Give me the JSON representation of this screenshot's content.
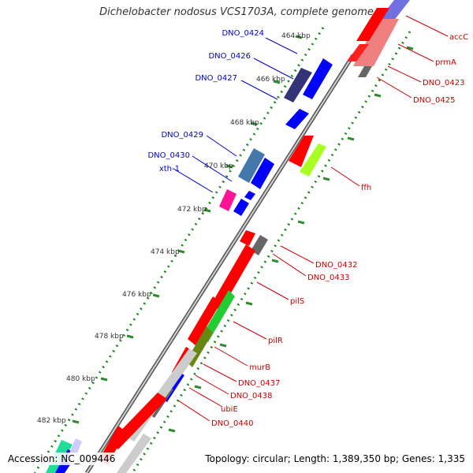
{
  "title": "Dichelobacter nodosus VCS1703A, complete genome",
  "footer": {
    "accession": "Accession: NC_009446",
    "topology": "Topology: circular; Length: 1,389,350 bp; Genes: 1,335"
  },
  "ruler_ticks": [
    {
      "label": "464 kbp"
    },
    {
      "label": "466 kbp"
    },
    {
      "label": "468 kbp"
    },
    {
      "label": "470 kbp"
    },
    {
      "label": "472 kbp"
    },
    {
      "label": "474 kbp"
    },
    {
      "label": "476 kbp"
    },
    {
      "label": "478 kbp"
    },
    {
      "label": "480 kbp"
    },
    {
      "label": "482 kbp"
    }
  ],
  "gene_labels_left": [
    {
      "text": "DNO_0424",
      "color": "#0000cc"
    },
    {
      "text": "DNO_0426",
      "color": "#0000cc"
    },
    {
      "text": "DNO_0427",
      "color": "#0000cc"
    },
    {
      "text": "DNO_0429",
      "color": "#0000cc"
    },
    {
      "text": "DNO_0430",
      "color": "#0000cc"
    },
    {
      "text": "xth-1",
      "color": "#0000cc"
    }
  ],
  "gene_labels_right": [
    {
      "text": "accC",
      "color": "#cc0000"
    },
    {
      "text": "prmA",
      "color": "#cc0000"
    },
    {
      "text": "DNO_0423",
      "color": "#cc0000"
    },
    {
      "text": "DNO_0425",
      "color": "#cc0000"
    },
    {
      "text": "ffh",
      "color": "#cc0000"
    },
    {
      "text": "DNO_0432",
      "color": "#cc0000"
    },
    {
      "text": "DNO_0433",
      "color": "#cc0000"
    },
    {
      "text": "pilS",
      "color": "#cc0000"
    },
    {
      "text": "pilR",
      "color": "#cc0000"
    },
    {
      "text": "murB",
      "color": "#cc0000"
    },
    {
      "text": "DNO_0437",
      "color": "#cc0000"
    },
    {
      "text": "DNO_0438",
      "color": "#cc0000"
    },
    {
      "text": "ubiE",
      "color": "#cc0000"
    },
    {
      "text": "DNO_0440",
      "color": "#cc0000"
    }
  ],
  "colors": {
    "backbone": "#666666",
    "tick_green": "#2e8b2e",
    "forward_gene": "#ff0000",
    "reverse_gene": "#0000ff"
  }
}
